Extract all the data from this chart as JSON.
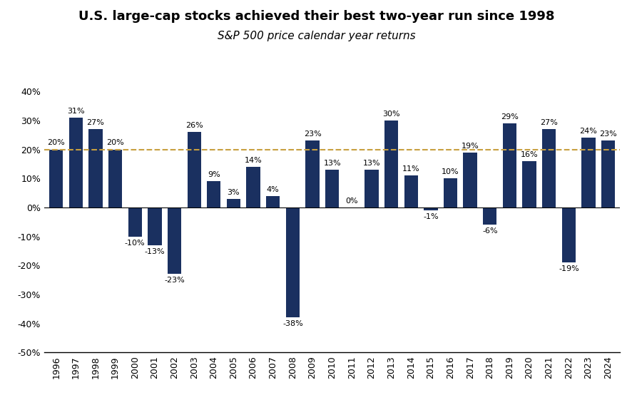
{
  "title": "U.S. large-cap stocks achieved their best two-year run since 1998",
  "subtitle": "S&P 500 price calendar year returns",
  "years": [
    1996,
    1997,
    1998,
    1999,
    2000,
    2001,
    2002,
    2003,
    2004,
    2005,
    2006,
    2007,
    2008,
    2009,
    2010,
    2011,
    2012,
    2013,
    2014,
    2015,
    2016,
    2017,
    2018,
    2019,
    2020,
    2021,
    2022,
    2023,
    2024
  ],
  "values": [
    20,
    31,
    27,
    20,
    -10,
    -13,
    -23,
    26,
    9,
    3,
    14,
    4,
    -38,
    23,
    13,
    0,
    13,
    30,
    11,
    -1,
    10,
    19,
    -6,
    29,
    16,
    27,
    -19,
    24,
    23
  ],
  "bar_color": "#1a3060",
  "dashed_line_y": 20,
  "dashed_line_color": "#c8a040",
  "ylim": [
    -50,
    45
  ],
  "yticks": [
    -50,
    -40,
    -30,
    -20,
    -10,
    0,
    10,
    20,
    30,
    40
  ],
  "title_fontsize": 13,
  "subtitle_fontsize": 11,
  "label_fontsize": 8.0,
  "axis_fontsize": 9,
  "background_color": "#ffffff"
}
